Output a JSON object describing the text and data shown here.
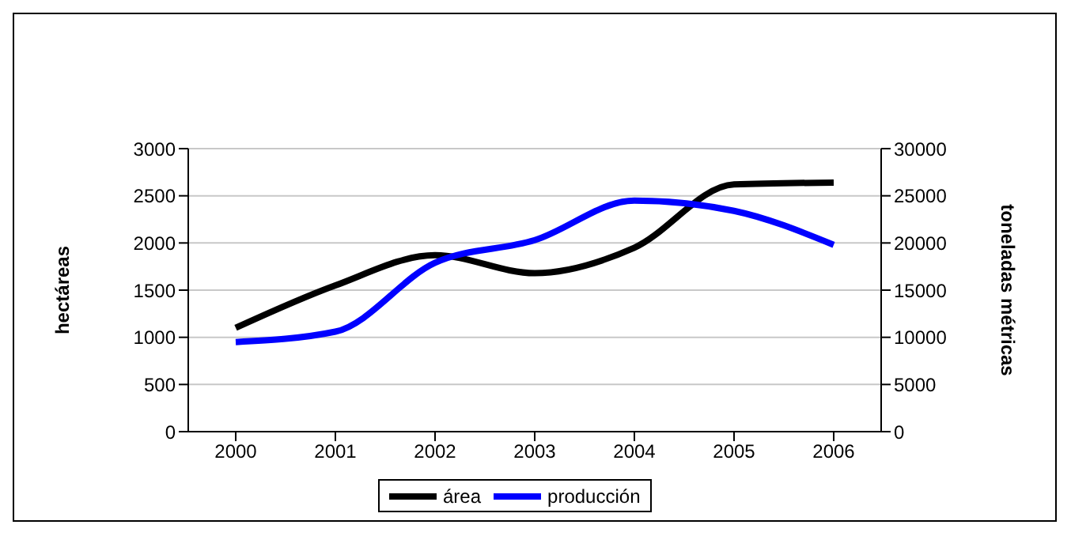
{
  "chart_data": {
    "type": "line",
    "categories": [
      "2000",
      "2001",
      "2002",
      "2003",
      "2004",
      "2005",
      "2006"
    ],
    "ylabel": "hectáreas",
    "y2label": "toneladas métricas",
    "ylim": [
      0,
      3000
    ],
    "yticks": [
      0,
      500,
      1000,
      1500,
      2000,
      2500,
      3000
    ],
    "y2lim": [
      0,
      30000
    ],
    "y2ticks": [
      0,
      5000,
      10000,
      15000,
      20000,
      25000,
      30000
    ],
    "grid": "y",
    "legend": "bottom",
    "series": [
      {
        "name": "área",
        "color": "#000000",
        "values": [
          1100,
          1550,
          1870,
          1680,
          1950,
          2620,
          2640
        ]
      },
      {
        "name": "producción",
        "color": "#0000ff",
        "axis": "y2",
        "values": [
          9500,
          10600,
          17900,
          20300,
          24500,
          23400,
          19800
        ]
      }
    ]
  }
}
